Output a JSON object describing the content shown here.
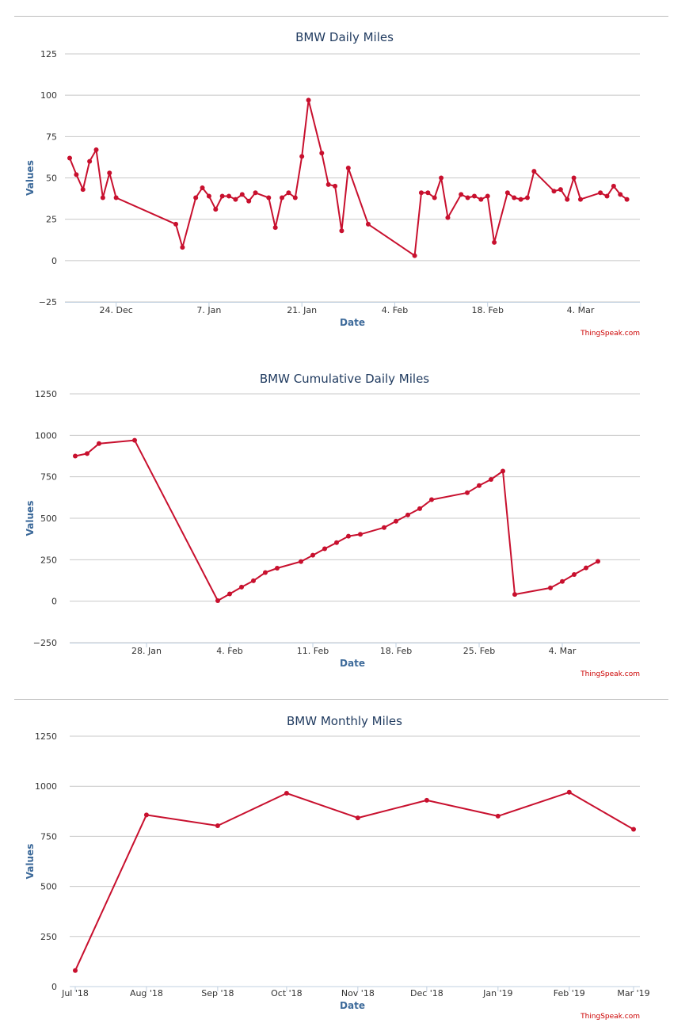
{
  "credit": "ThingSpeak.com",
  "colors": {
    "series": "#c8102e",
    "title": "#1f3a5f",
    "axis_label": "#3d6a9a"
  },
  "chart_data": [
    {
      "type": "line",
      "title": "BMW Daily Miles",
      "xlabel": "Date",
      "ylabel": "Values",
      "grid": true,
      "ylim": [
        -25,
        125
      ],
      "yticks": [
        125,
        100,
        75,
        50,
        25,
        0,
        -25
      ],
      "xlim": [
        "2018-12-17",
        "2019-03-12"
      ],
      "xticks": [
        {
          "date": "2018-12-24",
          "label": "24. Dec"
        },
        {
          "date": "2019-01-07",
          "label": "7. Jan"
        },
        {
          "date": "2019-01-21",
          "label": "21. Jan"
        },
        {
          "date": "2019-02-04",
          "label": "4. Feb"
        },
        {
          "date": "2019-02-18",
          "label": "18. Feb"
        },
        {
          "date": "2019-03-04",
          "label": "4. Mar"
        }
      ],
      "series": [
        {
          "points": [
            [
              "2018-12-17T00:00",
              62
            ],
            [
              "2018-12-18T00:00",
              52
            ],
            [
              "2018-12-19T00:00",
              43
            ],
            [
              "2018-12-20T00:00",
              60
            ],
            [
              "2018-12-21T00:00",
              67
            ],
            [
              "2018-12-22T00:00",
              38
            ],
            [
              "2018-12-23T00:00",
              53
            ],
            [
              "2018-12-24T00:00",
              38
            ],
            [
              "2019-01-02T00:00",
              22
            ],
            [
              "2019-01-03T00:00",
              8
            ],
            [
              "2019-01-05T00:00",
              38
            ],
            [
              "2019-01-06T00:00",
              44
            ],
            [
              "2019-01-07T00:00",
              39
            ],
            [
              "2019-01-08T00:00",
              31
            ],
            [
              "2019-01-09T00:00",
              39
            ],
            [
              "2019-01-10T00:00",
              39
            ],
            [
              "2019-01-11T00:00",
              37
            ],
            [
              "2019-01-12T00:00",
              40
            ],
            [
              "2019-01-13T00:00",
              36
            ],
            [
              "2019-01-14T00:00",
              41
            ],
            [
              "2019-01-16T00:00",
              38
            ],
            [
              "2019-01-17T00:00",
              20
            ],
            [
              "2019-01-18T00:00",
              38
            ],
            [
              "2019-01-19T00:00",
              41
            ],
            [
              "2019-01-20T00:00",
              38
            ],
            [
              "2019-01-21T00:00",
              63
            ],
            [
              "2019-01-22T00:00",
              97
            ],
            [
              "2019-01-24T00:00",
              65
            ],
            [
              "2019-01-25T00:00",
              46
            ],
            [
              "2019-01-26T00:00",
              45
            ],
            [
              "2019-01-27T00:00",
              18
            ],
            [
              "2019-01-28T00:00",
              56
            ],
            [
              "2019-01-31T00:00",
              22
            ],
            [
              "2019-02-07T00:00",
              3
            ],
            [
              "2019-02-08T00:00",
              41
            ],
            [
              "2019-02-09T00:00",
              41
            ],
            [
              "2019-02-10T00:00",
              38
            ],
            [
              "2019-02-11T00:00",
              50
            ],
            [
              "2019-02-12T00:00",
              26
            ],
            [
              "2019-02-14T00:00",
              40
            ],
            [
              "2019-02-15T00:00",
              38
            ],
            [
              "2019-02-16T00:00",
              39
            ],
            [
              "2019-02-17T00:00",
              37
            ],
            [
              "2019-02-18T00:00",
              39
            ],
            [
              "2019-02-19T00:00",
              11
            ],
            [
              "2019-02-21T00:00",
              41
            ],
            [
              "2019-02-22T00:00",
              38
            ],
            [
              "2019-02-23T00:00",
              37
            ],
            [
              "2019-02-24T00:00",
              38
            ],
            [
              "2019-02-25T00:00",
              54
            ],
            [
              "2019-02-28T00:00",
              42
            ],
            [
              "2019-03-01T00:00",
              43
            ],
            [
              "2019-03-02T00:00",
              37
            ],
            [
              "2019-03-03T00:00",
              50
            ],
            [
              "2019-03-04T00:00",
              37
            ],
            [
              "2019-03-07T00:00",
              41
            ],
            [
              "2019-03-08T00:00",
              39
            ],
            [
              "2019-03-09T00:00",
              45
            ],
            [
              "2019-03-10T00:00",
              40
            ],
            [
              "2019-03-11T00:00",
              37
            ]
          ]
        }
      ]
    },
    {
      "type": "line",
      "title": "BMW Cumulative Daily Miles",
      "xlabel": "Date",
      "ylabel": "Values",
      "grid": true,
      "ylim": [
        -250,
        1250
      ],
      "yticks": [
        1250,
        1000,
        750,
        500,
        250,
        0,
        -250
      ],
      "xlim": [
        "2019-01-22",
        "2019-03-10"
      ],
      "xticks": [
        {
          "date": "2019-01-28",
          "label": "28. Jan"
        },
        {
          "date": "2019-02-04",
          "label": "4. Feb"
        },
        {
          "date": "2019-02-11",
          "label": "11. Feb"
        },
        {
          "date": "2019-02-18",
          "label": "18. Feb"
        },
        {
          "date": "2019-02-25",
          "label": "25. Feb"
        },
        {
          "date": "2019-03-04",
          "label": "4. Mar"
        }
      ],
      "series": [
        {
          "points": [
            [
              "2019-01-22T00:00",
              875
            ],
            [
              "2019-01-23T00:00",
              890
            ],
            [
              "2019-01-24T00:00",
              950
            ],
            [
              "2019-01-27T00:00",
              970
            ],
            [
              "2019-02-03T00:00",
              3
            ],
            [
              "2019-02-04T00:00",
              44
            ],
            [
              "2019-02-05T00:00",
              85
            ],
            [
              "2019-02-06T00:00",
              123
            ],
            [
              "2019-02-07T00:00",
              173
            ],
            [
              "2019-02-08T00:00",
              199
            ],
            [
              "2019-02-10T00:00",
              239
            ],
            [
              "2019-02-11T00:00",
              277
            ],
            [
              "2019-02-12T00:00",
              316
            ],
            [
              "2019-02-13T00:00",
              353
            ],
            [
              "2019-02-14T00:00",
              392
            ],
            [
              "2019-02-15T00:00",
              403
            ],
            [
              "2019-02-17T00:00",
              444
            ],
            [
              "2019-02-18T00:00",
              482
            ],
            [
              "2019-02-19T00:00",
              520
            ],
            [
              "2019-02-20T00:00",
              558
            ],
            [
              "2019-02-21T00:00",
              612
            ],
            [
              "2019-02-24T00:00",
              654
            ],
            [
              "2019-02-25T00:00",
              697
            ],
            [
              "2019-02-26T00:00",
              734
            ],
            [
              "2019-02-27T00:00",
              784
            ],
            [
              "2019-02-28T00:00",
              41
            ],
            [
              "2019-03-03T00:00",
              80
            ],
            [
              "2019-03-04T00:00",
              119
            ],
            [
              "2019-03-05T00:00",
              161
            ],
            [
              "2019-03-06T00:00",
              201
            ],
            [
              "2019-03-07T00:00",
              240
            ]
          ]
        }
      ]
    },
    {
      "type": "line",
      "title": "BMW Monthly Miles",
      "xlabel": "Date",
      "ylabel": "Values",
      "grid": true,
      "ylim": [
        0,
        1250
      ],
      "yticks": [
        1250,
        1000,
        750,
        500,
        250,
        0
      ],
      "xlim": [
        "2018-07-01",
        "2019-03-01"
      ],
      "xticks": [
        {
          "date": "2018-07-01",
          "label": "Jul '18"
        },
        {
          "date": "2018-08-01",
          "label": "Aug '18"
        },
        {
          "date": "2018-09-01",
          "label": "Sep '18"
        },
        {
          "date": "2018-10-01",
          "label": "Oct '18"
        },
        {
          "date": "2018-11-01",
          "label": "Nov '18"
        },
        {
          "date": "2018-12-01",
          "label": "Dec '18"
        },
        {
          "date": "2019-01-01",
          "label": "Jan '19"
        },
        {
          "date": "2019-02-01",
          "label": "Feb '19"
        },
        {
          "date": "2019-03-01",
          "label": "Mar '19"
        }
      ],
      "series": [
        {
          "points": [
            [
              "2018-07-01T00:00",
              80
            ],
            [
              "2018-08-01T00:00",
              857
            ],
            [
              "2018-09-01T00:00",
              803
            ],
            [
              "2018-10-01T00:00",
              965
            ],
            [
              "2018-11-01T00:00",
              842
            ],
            [
              "2018-12-01T00:00",
              930
            ],
            [
              "2019-01-01T00:00",
              851
            ],
            [
              "2019-02-01T00:00",
              970
            ],
            [
              "2019-03-01T00:00",
              785
            ]
          ]
        }
      ]
    }
  ]
}
